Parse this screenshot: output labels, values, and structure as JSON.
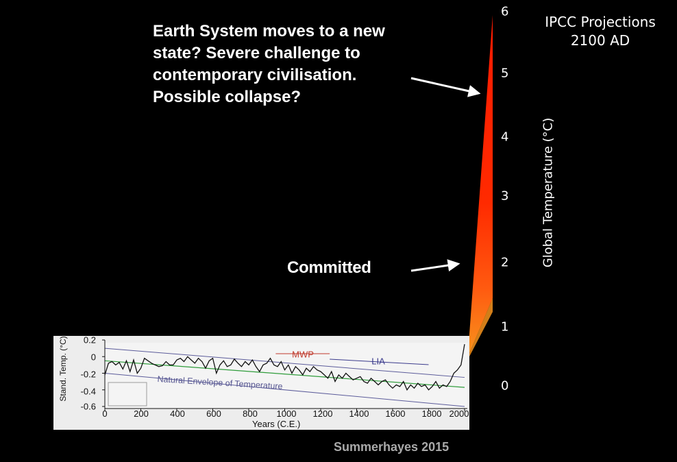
{
  "headline_lines": [
    "Earth System moves to a new",
    "state? Severe challenge to",
    "contemporary civilisation.",
    "Possible collapse?"
  ],
  "committed_label": "Committed",
  "ipcc": {
    "line1": "IPCC Projections",
    "line2": "2100 AD"
  },
  "credit": "Summerhayes 2015",
  "colors": {
    "background": "#000000",
    "wedge_red": "#ff1a00",
    "wedge_orange": "#f7941d",
    "inset_background": "#ededed",
    "envelope_line": "#5b5b9a",
    "trend_line": "#2e9c3a",
    "mwp_color": "#c0392b",
    "lia_color": "#3a3a8c"
  },
  "chart_data": [
    {
      "type": "area",
      "yaxis_label": "Global Temperature (°C)",
      "ytick_labels": [
        "6",
        "5",
        "4",
        "3",
        "2",
        "1",
        "0"
      ],
      "ylim": [
        0,
        6
      ],
      "projection_wedge": {
        "low_at_2100": 1.5,
        "high_at_2100": 6
      },
      "annotations": [
        {
          "text": "Earth System moves to a new state? Severe challenge to contemporary civilisation. Possible collapse?",
          "points_to_temperature": 5
        },
        {
          "text": "Committed",
          "points_to_temperature": 2
        }
      ]
    },
    {
      "type": "line",
      "xlabel": "Years (C.E.)",
      "ylabel": "Stand. Temp. (°C)",
      "xlim": [
        0,
        2000
      ],
      "ylim": [
        -0.6,
        0.2
      ],
      "xtick_labels": [
        "0",
        "200",
        "400",
        "600",
        "800",
        "1000",
        "1200",
        "1400",
        "1600",
        "1800",
        "2000"
      ],
      "ytick_labels": [
        "0.2",
        "0",
        "-0.2",
        "-0.4",
        "-0.6"
      ],
      "envelope_label": "Natural Envelope of Temperature",
      "periods": [
        {
          "label": "MWP",
          "from": 950,
          "to": 1250
        },
        {
          "label": "LIA",
          "from": 1250,
          "to": 1800
        }
      ],
      "envelope_upper": {
        "x": [
          0,
          2000
        ],
        "y": [
          0.1,
          -0.25
        ]
      },
      "envelope_lower": {
        "x": [
          0,
          2000
        ],
        "y": [
          -0.2,
          -0.6
        ]
      },
      "trend": {
        "x": [
          0,
          2000
        ],
        "y": [
          -0.05,
          -0.37
        ]
      },
      "series": [
        {
          "x": [
            0,
            20,
            40,
            60,
            80,
            100,
            120,
            140,
            160,
            180,
            200,
            220,
            240,
            260,
            280,
            300,
            320,
            340,
            360,
            380,
            400,
            420,
            440,
            460,
            480,
            500,
            520,
            540,
            560,
            580,
            600,
            620,
            640,
            660,
            680,
            700,
            720,
            740,
            760,
            780,
            800,
            820,
            840,
            860,
            880,
            900,
            920,
            940,
            960,
            980,
            1000,
            1020,
            1040,
            1060,
            1080,
            1100,
            1120,
            1140,
            1160,
            1180,
            1200,
            1220,
            1240,
            1260,
            1280,
            1300,
            1320,
            1340,
            1360,
            1380,
            1400,
            1420,
            1440,
            1460,
            1480,
            1500,
            1520,
            1540,
            1560,
            1580,
            1600,
            1620,
            1640,
            1660,
            1680,
            1700,
            1720,
            1740,
            1760,
            1780,
            1800,
            1820,
            1840,
            1860,
            1880,
            1900,
            1920,
            1940,
            1960,
            1980,
            2000
          ],
          "y": [
            -0.22,
            -0.08,
            -0.06,
            -0.1,
            -0.07,
            -0.15,
            -0.05,
            -0.18,
            -0.04,
            -0.2,
            -0.14,
            -0.02,
            -0.05,
            -0.08,
            -0.1,
            -0.12,
            -0.11,
            -0.06,
            -0.1,
            -0.1,
            -0.04,
            -0.02,
            -0.06,
            0.0,
            -0.04,
            -0.08,
            -0.02,
            -0.06,
            -0.14,
            -0.05,
            -0.02,
            -0.2,
            -0.1,
            -0.05,
            -0.12,
            -0.1,
            -0.03,
            -0.08,
            -0.12,
            -0.06,
            -0.1,
            -0.04,
            -0.12,
            -0.18,
            -0.1,
            -0.08,
            -0.02,
            -0.1,
            -0.12,
            -0.06,
            -0.16,
            -0.1,
            -0.2,
            -0.12,
            -0.16,
            -0.22,
            -0.14,
            -0.18,
            -0.12,
            -0.16,
            -0.18,
            -0.22,
            -0.26,
            -0.18,
            -0.3,
            -0.22,
            -0.26,
            -0.2,
            -0.24,
            -0.28,
            -0.26,
            -0.24,
            -0.3,
            -0.32,
            -0.26,
            -0.3,
            -0.34,
            -0.3,
            -0.28,
            -0.34,
            -0.38,
            -0.34,
            -0.36,
            -0.3,
            -0.4,
            -0.34,
            -0.38,
            -0.32,
            -0.36,
            -0.34,
            -0.4,
            -0.36,
            -0.3,
            -0.38,
            -0.34,
            -0.36,
            -0.3,
            -0.2,
            -0.16,
            -0.1,
            0.15
          ]
        }
      ]
    }
  ]
}
